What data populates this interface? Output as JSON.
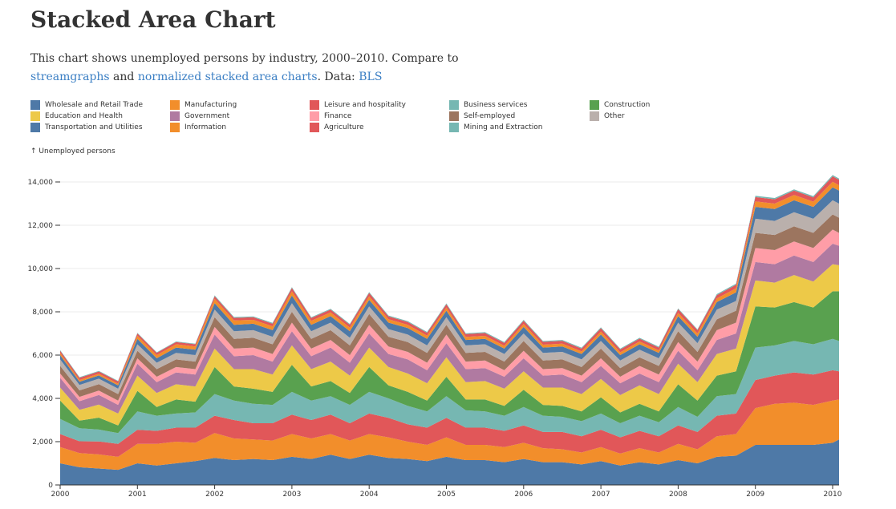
{
  "header": {
    "title": "Stacked Area Chart",
    "subtitle_pre": "This chart shows unemployed persons by industry, 2000–2010. Compare to ",
    "link1": "streamgraphs",
    "mid": " and ",
    "link2": "normalized stacked area charts",
    "data_label": ". Data: ",
    "link3": "BLS"
  },
  "chart_data": {
    "type": "area",
    "stacked": true,
    "ylabel": "↑ Unemployed persons",
    "ylim": [
      0,
      15000
    ],
    "yticks": [
      0,
      2000,
      4000,
      6000,
      8000,
      10000,
      12000,
      14000
    ],
    "ytick_labels": [
      "0",
      "2,000",
      "4,000",
      "6,000",
      "8,000",
      "10,000",
      "12,000",
      "14,000"
    ],
    "xlim": [
      2000.0,
      2010.083
    ],
    "xticks": [
      2000,
      2001,
      2002,
      2003,
      2004,
      2005,
      2006,
      2007,
      2008,
      2009,
      2010
    ],
    "xtick_labels": [
      "2000",
      "2001",
      "2002",
      "2003",
      "2004",
      "2005",
      "2006",
      "2007",
      "2008",
      "2009",
      "2010"
    ],
    "grid": "horizontal",
    "legend_position": "top",
    "x": [
      2000.0,
      2000.25,
      2000.5,
      2000.75,
      2001.0,
      2001.25,
      2001.5,
      2001.75,
      2002.0,
      2002.25,
      2002.5,
      2002.75,
      2003.0,
      2003.25,
      2003.5,
      2003.75,
      2004.0,
      2004.25,
      2004.5,
      2004.75,
      2005.0,
      2005.25,
      2005.5,
      2005.75,
      2006.0,
      2006.25,
      2006.5,
      2006.75,
      2007.0,
      2007.25,
      2007.5,
      2007.75,
      2008.0,
      2008.25,
      2008.5,
      2008.75,
      2009.0,
      2009.25,
      2009.5,
      2009.75,
      2010.0,
      2010.083
    ],
    "series": [
      {
        "name": "Wholesale and Retail Trade",
        "color": "#4e79a7",
        "values": [
          1000,
          820,
          760,
          700,
          1000,
          900,
          1000,
          1100,
          1250,
          1150,
          1200,
          1150,
          1300,
          1200,
          1400,
          1200,
          1400,
          1250,
          1200,
          1100,
          1300,
          1150,
          1150,
          1050,
          1200,
          1050,
          1050,
          950,
          1100,
          900,
          1050,
          950,
          1150,
          1000,
          1300,
          1350,
          1850,
          1850,
          1850,
          1850,
          1950,
          2100
        ]
      },
      {
        "name": "Manufacturing",
        "color": "#f28e2b",
        "values": [
          750,
          650,
          650,
          600,
          900,
          1000,
          1000,
          850,
          1150,
          1000,
          900,
          900,
          1050,
          950,
          950,
          850,
          950,
          950,
          800,
          750,
          900,
          700,
          700,
          700,
          750,
          650,
          600,
          550,
          650,
          550,
          650,
          550,
          750,
          650,
          950,
          1000,
          1700,
          1900,
          1950,
          1850,
          1950,
          1850
        ]
      },
      {
        "name": "Leisure and hospitality",
        "color": "#e15759",
        "values": [
          600,
          550,
          600,
          600,
          650,
          600,
          650,
          700,
          800,
          850,
          750,
          800,
          900,
          850,
          900,
          800,
          950,
          900,
          800,
          800,
          900,
          800,
          800,
          750,
          800,
          750,
          800,
          750,
          800,
          750,
          800,
          750,
          850,
          800,
          950,
          950,
          1300,
          1300,
          1400,
          1400,
          1400,
          1300
        ]
      },
      {
        "name": "Business services",
        "color": "#76b7b2",
        "values": [
          700,
          600,
          550,
          500,
          850,
          700,
          650,
          700,
          1000,
          900,
          900,
          850,
          1050,
          900,
          850,
          850,
          1000,
          900,
          850,
          750,
          1000,
          800,
          750,
          700,
          850,
          750,
          700,
          700,
          750,
          650,
          700,
          650,
          850,
          700,
          900,
          900,
          1500,
          1400,
          1450,
          1400,
          1450,
          1400
        ]
      },
      {
        "name": "Construction",
        "color": "#59a14f",
        "values": [
          850,
          350,
          550,
          350,
          950,
          400,
          650,
          500,
          1250,
          650,
          700,
          600,
          1250,
          650,
          700,
          550,
          1150,
          600,
          650,
          500,
          900,
          500,
          550,
          450,
          800,
          500,
          500,
          450,
          750,
          500,
          550,
          500,
          1050,
          750,
          950,
          1050,
          1900,
          1750,
          1800,
          1700,
          2200,
          2300
        ]
      },
      {
        "name": "Education and Health",
        "color": "#edc948",
        "values": [
          600,
          500,
          600,
          550,
          700,
          650,
          700,
          700,
          850,
          800,
          900,
          800,
          900,
          800,
          900,
          800,
          900,
          850,
          850,
          800,
          900,
          800,
          850,
          800,
          850,
          800,
          850,
          800,
          850,
          800,
          850,
          800,
          950,
          850,
          1000,
          1050,
          1200,
          1150,
          1250,
          1200,
          1250,
          1200
        ]
      },
      {
        "name": "Government",
        "color": "#b07aa1",
        "values": [
          450,
          400,
          450,
          400,
          550,
          500,
          550,
          550,
          650,
          600,
          650,
          600,
          650,
          600,
          650,
          600,
          650,
          600,
          650,
          600,
          650,
          600,
          600,
          550,
          600,
          550,
          600,
          550,
          600,
          550,
          550,
          550,
          600,
          550,
          650,
          700,
          850,
          850,
          900,
          900,
          950,
          900
        ]
      },
      {
        "name": "Finance",
        "color": "#ff9da7",
        "values": [
          200,
          200,
          200,
          200,
          250,
          250,
          250,
          250,
          350,
          350,
          350,
          350,
          400,
          350,
          350,
          350,
          400,
          350,
          350,
          350,
          400,
          350,
          350,
          300,
          350,
          300,
          300,
          300,
          350,
          300,
          350,
          350,
          400,
          400,
          450,
          500,
          650,
          650,
          650,
          650,
          650,
          600
        ]
      },
      {
        "name": "Self-employed",
        "color": "#9c755f",
        "values": [
          350,
          300,
          300,
          300,
          350,
          350,
          350,
          350,
          450,
          450,
          450,
          450,
          500,
          450,
          450,
          450,
          500,
          450,
          450,
          450,
          450,
          400,
          400,
          400,
          450,
          400,
          400,
          400,
          450,
          400,
          400,
          400,
          500,
          450,
          500,
          550,
          700,
          700,
          700,
          700,
          700,
          700
        ]
      },
      {
        "name": "Other",
        "color": "#bab0ac",
        "values": [
          300,
          250,
          250,
          250,
          300,
          300,
          300,
          300,
          350,
          350,
          350,
          350,
          400,
          350,
          350,
          350,
          350,
          350,
          350,
          350,
          350,
          350,
          350,
          350,
          350,
          350,
          350,
          350,
          350,
          350,
          350,
          350,
          400,
          400,
          450,
          450,
          650,
          650,
          650,
          650,
          650,
          650
        ]
      },
      {
        "name": "Transportation and Utilities",
        "color": "#4e79a7",
        "values": [
          200,
          150,
          150,
          150,
          250,
          200,
          250,
          250,
          300,
          300,
          300,
          300,
          350,
          300,
          300,
          300,
          300,
          300,
          300,
          300,
          300,
          250,
          250,
          250,
          300,
          250,
          250,
          250,
          300,
          250,
          250,
          250,
          300,
          300,
          350,
          400,
          550,
          550,
          550,
          550,
          600,
          600
        ]
      },
      {
        "name": "Information",
        "color": "#f28e2b",
        "values": [
          100,
          80,
          80,
          80,
          150,
          150,
          150,
          150,
          200,
          200,
          180,
          180,
          200,
          180,
          170,
          170,
          170,
          160,
          150,
          150,
          150,
          140,
          140,
          130,
          140,
          130,
          130,
          120,
          140,
          130,
          130,
          120,
          150,
          150,
          170,
          180,
          250,
          250,
          250,
          240,
          260,
          250
        ]
      },
      {
        "name": "Agriculture",
        "color": "#e15759",
        "values": [
          100,
          100,
          100,
          100,
          100,
          100,
          100,
          100,
          120,
          120,
          120,
          120,
          150,
          130,
          130,
          130,
          150,
          130,
          130,
          130,
          150,
          130,
          130,
          130,
          150,
          130,
          130,
          130,
          150,
          130,
          130,
          130,
          170,
          150,
          150,
          170,
          200,
          200,
          200,
          200,
          250,
          250
        ]
      },
      {
        "name": "Mining and Extraction",
        "color": "#76b7b2",
        "values": [
          30,
          30,
          30,
          30,
          30,
          30,
          30,
          30,
          40,
          40,
          40,
          40,
          40,
          40,
          40,
          40,
          40,
          40,
          40,
          40,
          40,
          40,
          40,
          40,
          40,
          40,
          40,
          40,
          40,
          40,
          40,
          40,
          40,
          40,
          50,
          50,
          60,
          60,
          60,
          60,
          60,
          60
        ]
      }
    ]
  }
}
